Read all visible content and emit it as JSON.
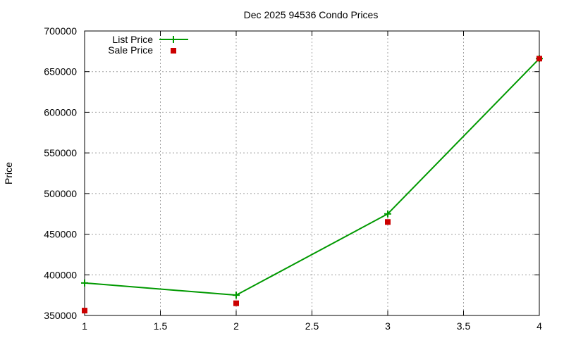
{
  "chart_data": {
    "type": "line",
    "title": "Dec 2025 94536 Condo Prices",
    "xlabel": "",
    "ylabel": "Price",
    "xlim": [
      1,
      4
    ],
    "ylim": [
      350000,
      700000
    ],
    "x_ticks": [
      {
        "value": 1,
        "label": "1"
      },
      {
        "value": 1.5,
        "label": "1.5"
      },
      {
        "value": 2,
        "label": "2"
      },
      {
        "value": 2.5,
        "label": "2.5"
      },
      {
        "value": 3,
        "label": "3"
      },
      {
        "value": 3.5,
        "label": "3.5"
      },
      {
        "value": 4,
        "label": "4"
      }
    ],
    "y_ticks": [
      {
        "value": 350000,
        "label": "350000"
      },
      {
        "value": 400000,
        "label": "400000"
      },
      {
        "value": 450000,
        "label": "450000"
      },
      {
        "value": 500000,
        "label": "500000"
      },
      {
        "value": 550000,
        "label": "550000"
      },
      {
        "value": 600000,
        "label": "600000"
      },
      {
        "value": 650000,
        "label": "650000"
      },
      {
        "value": 700000,
        "label": "700000"
      }
    ],
    "grid": true,
    "legend_position": "top-left",
    "series": [
      {
        "name": "List Price",
        "style": "line-with-plus-markers",
        "color": "#009900",
        "x": [
          1,
          2,
          3,
          4
        ],
        "values": [
          390000,
          375000,
          475000,
          666000
        ]
      },
      {
        "name": "Sale Price",
        "style": "square-markers",
        "color": "#cc0000",
        "x": [
          1,
          2,
          3,
          4
        ],
        "values": [
          356000,
          365000,
          465000,
          666000
        ]
      }
    ]
  }
}
